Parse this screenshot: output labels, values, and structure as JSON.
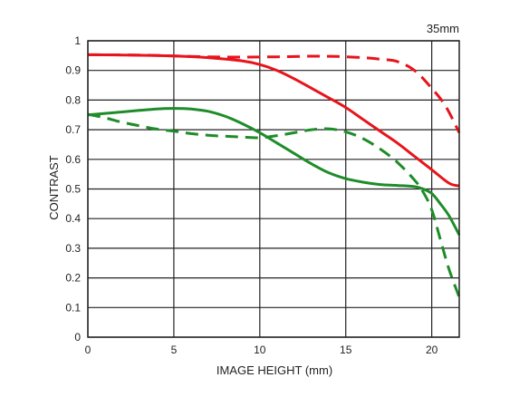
{
  "chart_data": {
    "type": "line",
    "corner_label": "35mm",
    "xlabel": "IMAGE HEIGHT (mm)",
    "ylabel": "CONTRAST",
    "xlim": [
      0,
      21.6
    ],
    "ylim": [
      0,
      1
    ],
    "x_ticks": [
      "0",
      "5",
      "10",
      "15",
      "20"
    ],
    "x_tick_values": [
      0,
      5,
      10,
      15,
      20
    ],
    "y_ticks": [
      "0",
      "0.1",
      "0.2",
      "0.3",
      "0.4",
      "0.5",
      "0.6",
      "0.7",
      "0.8",
      "0.9",
      "1"
    ],
    "y_tick_values": [
      0,
      0.1,
      0.2,
      0.3,
      0.4,
      0.5,
      0.6,
      0.7,
      0.8,
      0.9,
      1.0
    ],
    "grid": true,
    "series": [
      {
        "color": "#e8131b",
        "dash": "solid",
        "points": [
          [
            0,
            0.953
          ],
          [
            2,
            0.952
          ],
          [
            5,
            0.949
          ],
          [
            7,
            0.943
          ],
          [
            9,
            0.932
          ],
          [
            10,
            0.92
          ],
          [
            11,
            0.9
          ],
          [
            12,
            0.872
          ],
          [
            13,
            0.84
          ],
          [
            14,
            0.808
          ],
          [
            15,
            0.775
          ],
          [
            16,
            0.735
          ],
          [
            17,
            0.695
          ],
          [
            18,
            0.655
          ],
          [
            19,
            0.61
          ],
          [
            20,
            0.565
          ],
          [
            21,
            0.52
          ],
          [
            21.6,
            0.51
          ]
        ]
      },
      {
        "color": "#e8131b",
        "dash": "dashed",
        "points": [
          [
            0,
            0.953
          ],
          [
            3,
            0.952
          ],
          [
            5,
            0.949
          ],
          [
            7,
            0.946
          ],
          [
            9,
            0.945
          ],
          [
            11,
            0.946
          ],
          [
            13,
            0.948
          ],
          [
            14.5,
            0.947
          ],
          [
            16,
            0.943
          ],
          [
            17,
            0.938
          ],
          [
            18,
            0.93
          ],
          [
            19,
            0.9
          ],
          [
            20,
            0.84
          ],
          [
            20.8,
            0.78
          ],
          [
            21.6,
            0.69
          ]
        ]
      },
      {
        "color": "#1f8c2a",
        "dash": "solid",
        "points": [
          [
            0,
            0.75
          ],
          [
            1,
            0.755
          ],
          [
            2,
            0.76
          ],
          [
            3,
            0.765
          ],
          [
            4,
            0.77
          ],
          [
            5,
            0.772
          ],
          [
            6,
            0.77
          ],
          [
            7,
            0.762
          ],
          [
            8,
            0.745
          ],
          [
            9,
            0.72
          ],
          [
            10,
            0.69
          ],
          [
            11,
            0.655
          ],
          [
            12,
            0.62
          ],
          [
            13,
            0.585
          ],
          [
            14,
            0.555
          ],
          [
            15,
            0.535
          ],
          [
            16,
            0.523
          ],
          [
            17,
            0.515
          ],
          [
            18,
            0.512
          ],
          [
            19,
            0.508
          ],
          [
            19.5,
            0.5
          ],
          [
            20,
            0.485
          ],
          [
            20.5,
            0.45
          ],
          [
            21,
            0.41
          ],
          [
            21.6,
            0.345
          ]
        ]
      },
      {
        "color": "#1f8c2a",
        "dash": "dashed",
        "points": [
          [
            0,
            0.752
          ],
          [
            1,
            0.74
          ],
          [
            2,
            0.725
          ],
          [
            3,
            0.713
          ],
          [
            4,
            0.702
          ],
          [
            5,
            0.695
          ],
          [
            6,
            0.687
          ],
          [
            7,
            0.681
          ],
          [
            8,
            0.678
          ],
          [
            9,
            0.675
          ],
          [
            10,
            0.673
          ],
          [
            11,
            0.68
          ],
          [
            12,
            0.69
          ],
          [
            13,
            0.7
          ],
          [
            14,
            0.703
          ],
          [
            15,
            0.693
          ],
          [
            16,
            0.67
          ],
          [
            17,
            0.635
          ],
          [
            18,
            0.59
          ],
          [
            19,
            0.53
          ],
          [
            19.5,
            0.49
          ],
          [
            20,
            0.43
          ],
          [
            20.5,
            0.33
          ],
          [
            21,
            0.23
          ],
          [
            21.6,
            0.135
          ]
        ]
      }
    ]
  }
}
